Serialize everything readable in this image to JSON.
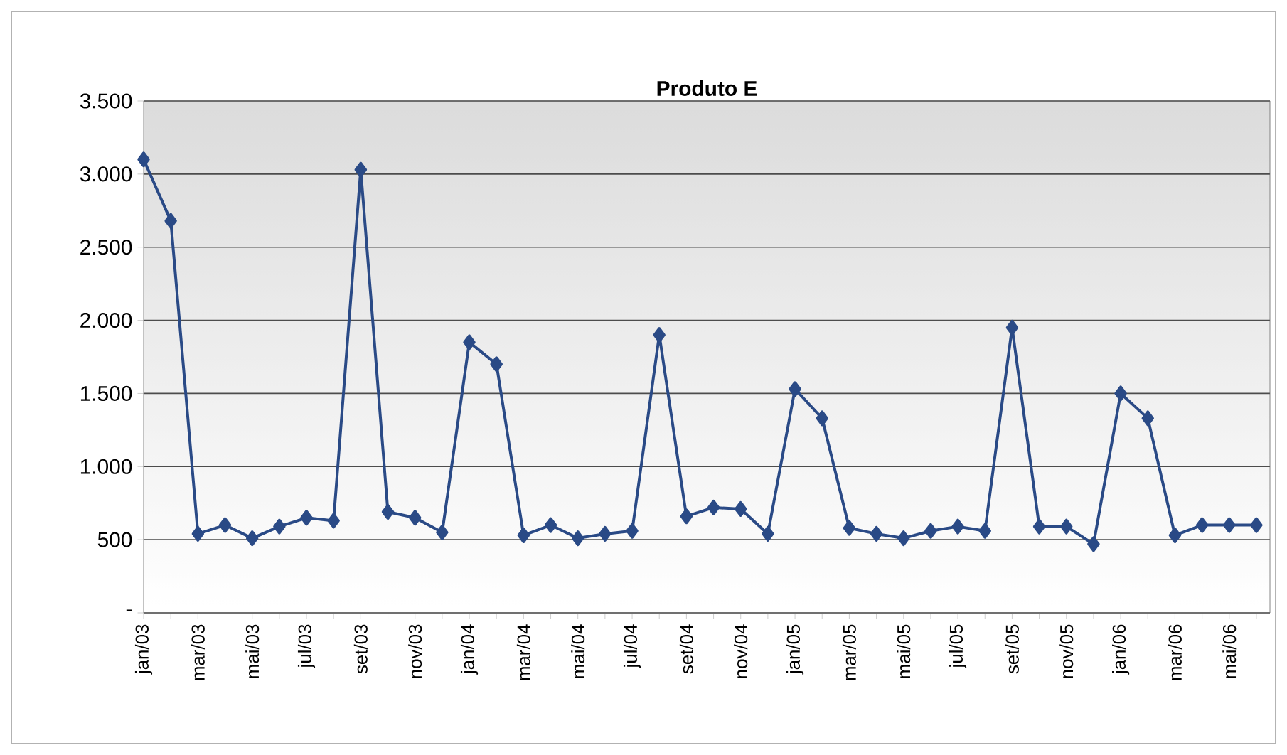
{
  "chart_data": {
    "type": "line",
    "title": "Produto E",
    "categories": [
      "jan/03",
      null,
      "mar/03",
      null,
      "mai/03",
      null,
      "jul/03",
      null,
      "set/03",
      null,
      "nov/03",
      null,
      "jan/04",
      null,
      "mar/04",
      null,
      "mai/04",
      null,
      "jul/04",
      null,
      "set/04",
      null,
      "nov/04",
      null,
      "jan/05",
      null,
      "mar/05",
      null,
      "mai/05",
      null,
      "jul/05",
      null,
      "set/05",
      null,
      "nov/05",
      null,
      "jan/06",
      null,
      "mar/06",
      null,
      "mai/06",
      null
    ],
    "series": [
      {
        "color": "#2a4a86",
        "values": [
          3100,
          2680,
          540,
          600,
          510,
          590,
          650,
          630,
          3030,
          690,
          650,
          550,
          1850,
          1700,
          530,
          600,
          510,
          540,
          560,
          1900,
          660,
          720,
          710,
          540,
          1530,
          1330,
          580,
          540,
          510,
          560,
          590,
          560,
          1950,
          590,
          590,
          470,
          1500,
          1330,
          530,
          600,
          600,
          600
        ]
      }
    ],
    "ylim": [
      0,
      3500
    ],
    "yticks": [
      {
        "value": 0,
        "label": "-"
      },
      500,
      {
        "value": 1000,
        "label": "1.000"
      },
      {
        "value": 1500,
        "label": "1.500"
      },
      {
        "value": 2000,
        "label": "2.000"
      },
      {
        "value": 2500,
        "label": "2.500"
      },
      {
        "value": 3000,
        "label": "3.000"
      },
      {
        "value": 3500,
        "label": "3.500"
      }
    ],
    "grid": "y",
    "marker": "diamond",
    "line_style": "solid"
  }
}
